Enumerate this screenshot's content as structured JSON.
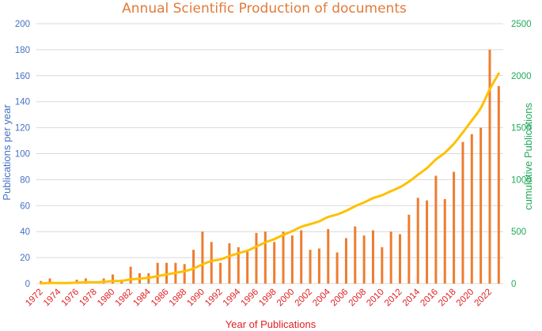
{
  "chart_data": {
    "type": "bar+line",
    "title": "Annual Scientific Production of documents",
    "xlabel": "Year of Publications",
    "ylabel_left": "Publications per year",
    "ylabel_right": "cumulative Publications",
    "ylim_left": [
      0,
      200
    ],
    "ylim_right": [
      0,
      2500
    ],
    "yticks_left": [
      "0",
      "20",
      "40",
      "60",
      "80",
      "100",
      "120",
      "140",
      "160",
      "180",
      "200"
    ],
    "yticks_right": [
      "0",
      "500",
      "1000",
      "1500",
      "2000",
      "2500"
    ],
    "x_tick_labels": [
      "1972",
      "1974",
      "1976",
      "1978",
      "1980",
      "1982",
      "1984",
      "1986",
      "1988",
      "1990",
      "1992",
      "1994",
      "1996",
      "1998",
      "2000",
      "2002",
      "2004",
      "2006",
      "2008",
      "2010",
      "2012",
      "2014",
      "2016",
      "2018",
      "2020",
      "2022"
    ],
    "years": [
      1972,
      1973,
      1974,
      1975,
      1976,
      1977,
      1978,
      1979,
      1980,
      1981,
      1982,
      1983,
      1984,
      1985,
      1986,
      1987,
      1988,
      1989,
      1990,
      1991,
      1992,
      1993,
      1994,
      1995,
      1996,
      1997,
      1998,
      1999,
      2000,
      2001,
      2002,
      2003,
      2004,
      2005,
      2006,
      2007,
      2008,
      2009,
      2010,
      2011,
      2012,
      2013,
      2014,
      2015,
      2016,
      2017,
      2018,
      2019,
      2020,
      2021,
      2022,
      2023
    ],
    "series": [
      {
        "axis": "left",
        "kind": "bar",
        "color": "#ED7D31",
        "values": [
          2,
          4,
          0,
          0,
          3,
          4,
          0,
          4,
          7,
          3,
          13,
          8,
          8,
          16,
          16,
          16,
          15,
          26,
          40,
          32,
          16,
          31,
          28,
          25,
          39,
          40,
          32,
          40,
          37,
          41,
          26,
          27,
          42,
          24,
          35,
          44,
          37,
          41,
          28,
          40,
          38,
          53,
          66,
          64,
          83,
          65,
          86,
          109,
          115,
          120,
          180,
          152
        ]
      },
      {
        "axis": "right",
        "kind": "line",
        "color": "#FFC000",
        "values": [
          2,
          6,
          6,
          6,
          9,
          13,
          13,
          17,
          24,
          27,
          40,
          48,
          56,
          72,
          88,
          104,
          119,
          145,
          185,
          217,
          233,
          264,
          292,
          317,
          356,
          396,
          428,
          468,
          505,
          546,
          572,
          599,
          641,
          665,
          700,
          744,
          781,
          822,
          850,
          890,
          928,
          981,
          1047,
          1111,
          1194,
          1259,
          1345,
          1454,
          1569,
          1689,
          1869,
          2021
        ]
      }
    ]
  }
}
